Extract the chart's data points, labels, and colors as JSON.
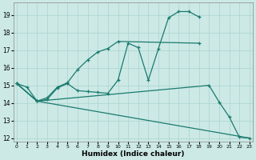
{
  "background_color": "#cce9e6",
  "grid_color": "#aad4cf",
  "line_color": "#1a7a6e",
  "xlabel": "Humidex (Indice chaleur)",
  "xlim": [
    -0.3,
    23.3
  ],
  "ylim": [
    11.8,
    19.7
  ],
  "yticks": [
    12,
    13,
    14,
    15,
    16,
    17,
    18,
    19
  ],
  "xticks": [
    0,
    1,
    2,
    3,
    4,
    5,
    6,
    7,
    8,
    9,
    10,
    11,
    12,
    13,
    14,
    15,
    16,
    17,
    18,
    19,
    20,
    21,
    22,
    23
  ],
  "curve1_x": [
    0,
    1,
    2,
    3,
    4,
    5,
    6,
    7,
    8,
    9,
    10,
    11,
    12,
    13,
    14,
    15,
    16,
    17,
    18
  ],
  "curve1_y": [
    15.1,
    14.9,
    14.1,
    14.2,
    14.85,
    15.1,
    14.7,
    14.65,
    14.6,
    14.55,
    15.3,
    17.4,
    17.15,
    15.3,
    17.1,
    18.85,
    19.2,
    19.2,
    18.9
  ],
  "curve2_x": [
    0,
    2,
    3,
    4,
    5,
    6,
    7,
    8,
    9,
    10,
    18
  ],
  "curve2_y": [
    15.1,
    14.1,
    14.3,
    14.9,
    15.15,
    15.9,
    16.45,
    16.9,
    17.1,
    17.5,
    17.4
  ],
  "curve3_x": [
    0,
    2,
    19,
    20,
    21,
    22,
    23
  ],
  "curve3_y": [
    15.1,
    14.1,
    15.0,
    14.05,
    13.2,
    12.05,
    12.0
  ],
  "curve4_x": [
    0,
    2,
    23
  ],
  "curve4_y": [
    15.1,
    14.1,
    12.0
  ]
}
